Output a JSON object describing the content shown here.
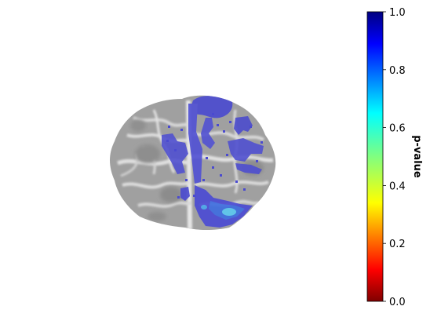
{
  "colorbar": {
    "label": "p-value",
    "colormap": "jet_r",
    "range": [
      0.0,
      1.0
    ],
    "ticks": [
      "0.0",
      "0.2",
      "0.4",
      "0.6",
      "0.8",
      "1.0"
    ]
  },
  "image": {
    "subject": "brain-slice-overlay",
    "background_color": "#9a9a9a",
    "overlay_color": "#4a4ad0",
    "highlight_color": "#5ac8f0"
  }
}
